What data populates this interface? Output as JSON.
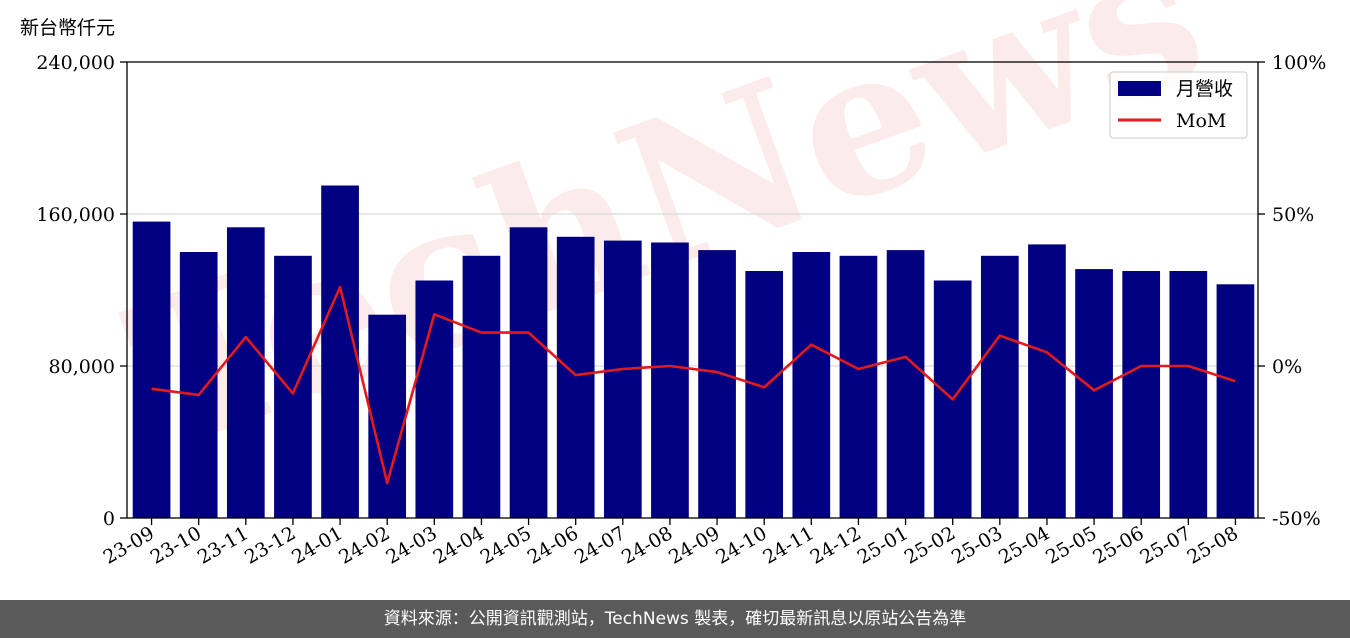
{
  "y_unit_label": "新台幣仟元",
  "footer_text": "資料來源：公開資訊觀測站，TechNews 製表，確切最新訊息以原站公告為準",
  "watermark_text": "TechNews",
  "colors": {
    "bar": "#000080",
    "line": "#e31a1c",
    "grid": "#d9d9d9",
    "footer_bg": "#5a5a5a"
  },
  "chart_data": {
    "type": "bar",
    "categories": [
      "23-09",
      "23-10",
      "23-11",
      "23-12",
      "24-01",
      "24-02",
      "24-03",
      "24-04",
      "24-05",
      "24-06",
      "24-07",
      "24-08",
      "24-09",
      "24-10",
      "24-11",
      "24-12",
      "25-01",
      "25-02",
      "25-03",
      "25-04",
      "25-05",
      "25-06",
      "25-07",
      "25-08"
    ],
    "series": [
      {
        "name": "月營收",
        "axis": "left",
        "type": "bar",
        "values": [
          156000,
          140000,
          153000,
          138000,
          175000,
          107000,
          125000,
          138000,
          153000,
          148000,
          146000,
          145000,
          141000,
          130000,
          140000,
          138000,
          141000,
          125000,
          138000,
          144000,
          131000,
          130000,
          130000,
          123000
        ]
      },
      {
        "name": "MoM",
        "axis": "right",
        "type": "line",
        "values": [
          -7.5,
          -9.5,
          9.5,
          -9,
          26,
          -38.5,
          17,
          11,
          11,
          -3,
          -1,
          0,
          -2,
          -7,
          7,
          -1,
          3,
          -11,
          10,
          4.5,
          -8,
          0,
          0,
          -5
        ]
      }
    ],
    "y_left": {
      "range": [
        0,
        240000
      ],
      "ticks": [
        0,
        80000,
        160000,
        240000
      ],
      "tick_labels": [
        "0",
        "80,000",
        "160,000",
        "240,000"
      ]
    },
    "y_right": {
      "range": [
        -50,
        100
      ],
      "ticks": [
        -50,
        0,
        50,
        100
      ],
      "tick_labels": [
        "-50%",
        "0%",
        "50%",
        "100%"
      ]
    },
    "grid": "horizontal",
    "legend_position": "top-right"
  }
}
